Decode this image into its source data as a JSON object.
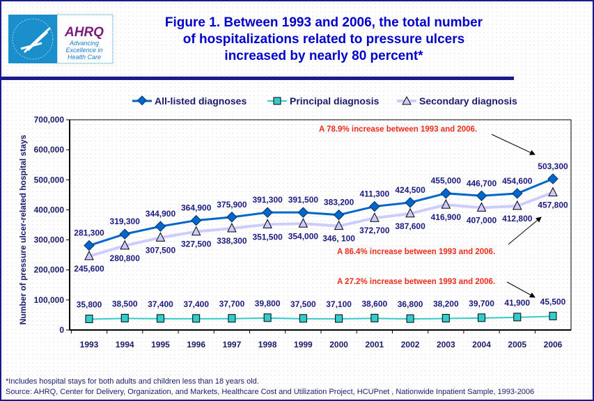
{
  "logo": {
    "agency": "AHRQ",
    "tagline": "Advancing Excellence in Health Care"
  },
  "colors": {
    "all_listed": "#0066cc",
    "principal": "#33cccc",
    "secondary": "#ccccff",
    "annotation": "#ee2a1a",
    "title": "#0000cc"
  },
  "chart_data": {
    "type": "line",
    "title_lines": [
      "Figure 1. Between 1993 and 2006, the total number",
      "of hospitalizations related to pressure ulcers",
      "increased by nearly 80 percent*"
    ],
    "xlabel": "",
    "ylabel": "Number of pressure ulcer-related hospital stays",
    "ylim": [
      0,
      700000
    ],
    "yticks": [
      "0",
      "100,000",
      "200,000",
      "300,000",
      "400,000",
      "500,000",
      "600,000",
      "700,000"
    ],
    "categories": [
      "1993",
      "1994",
      "1995",
      "1996",
      "1997",
      "1998",
      "1999",
      "2000",
      "2001",
      "2002",
      "2003",
      "2004",
      "2005",
      "2006"
    ],
    "legend_position": "top",
    "series": [
      {
        "name": "All-listed diagnoses",
        "marker": "diamond",
        "values": [
          281300,
          319300,
          344900,
          364900,
          375900,
          391300,
          391500,
          383200,
          411300,
          424500,
          455000,
          446700,
          454600,
          503300
        ],
        "labels": [
          "281,300",
          "319,300",
          "344,900",
          "364,900",
          "375,900",
          "391,300",
          "391,500",
          "383,200",
          "411,300",
          "424,500",
          "455,000",
          "446,700",
          "454,600",
          "503,300"
        ]
      },
      {
        "name": "Principal diagnosis",
        "marker": "square",
        "values": [
          35800,
          38500,
          37400,
          37400,
          37700,
          39800,
          37500,
          37100,
          38600,
          36800,
          38200,
          39700,
          41900,
          45500
        ],
        "labels": [
          "35,800",
          "38,500",
          "37,400",
          "37,400",
          "37,700",
          "39,800",
          "37,500",
          "37,100",
          "38,600",
          "36,800",
          "38,200",
          "39,700",
          "41,900",
          "45,500"
        ]
      },
      {
        "name": "Secondary diagnosis",
        "marker": "triangle",
        "values": [
          245600,
          280800,
          307500,
          327500,
          338300,
          351500,
          354000,
          346100,
          372700,
          387600,
          416900,
          407000,
          412800,
          457800
        ],
        "labels": [
          "245,600",
          "280,800",
          "307,500",
          "327,500",
          "338,300",
          "351,500",
          "354,000",
          "346, 100",
          "372,700",
          "387,600",
          "416,900",
          "407,000",
          "412,800",
          "457,800"
        ]
      }
    ],
    "annotations": [
      "A 78.9% increase between 1993 and 2006.",
      "A 86.4% increase between 1993 and 2006.",
      "A 27.2% increase between 1993 and 2006."
    ]
  },
  "footnotes": [
    "*Includes hospital stays for both adults and children less than 18 years old.",
    "Source: AHRQ, Center for Delivery, Organization, and Markets, Healthcare Cost and Utilization Project, HCUPnet , Nationwide Inpatient Sample, 1993-2006"
  ]
}
